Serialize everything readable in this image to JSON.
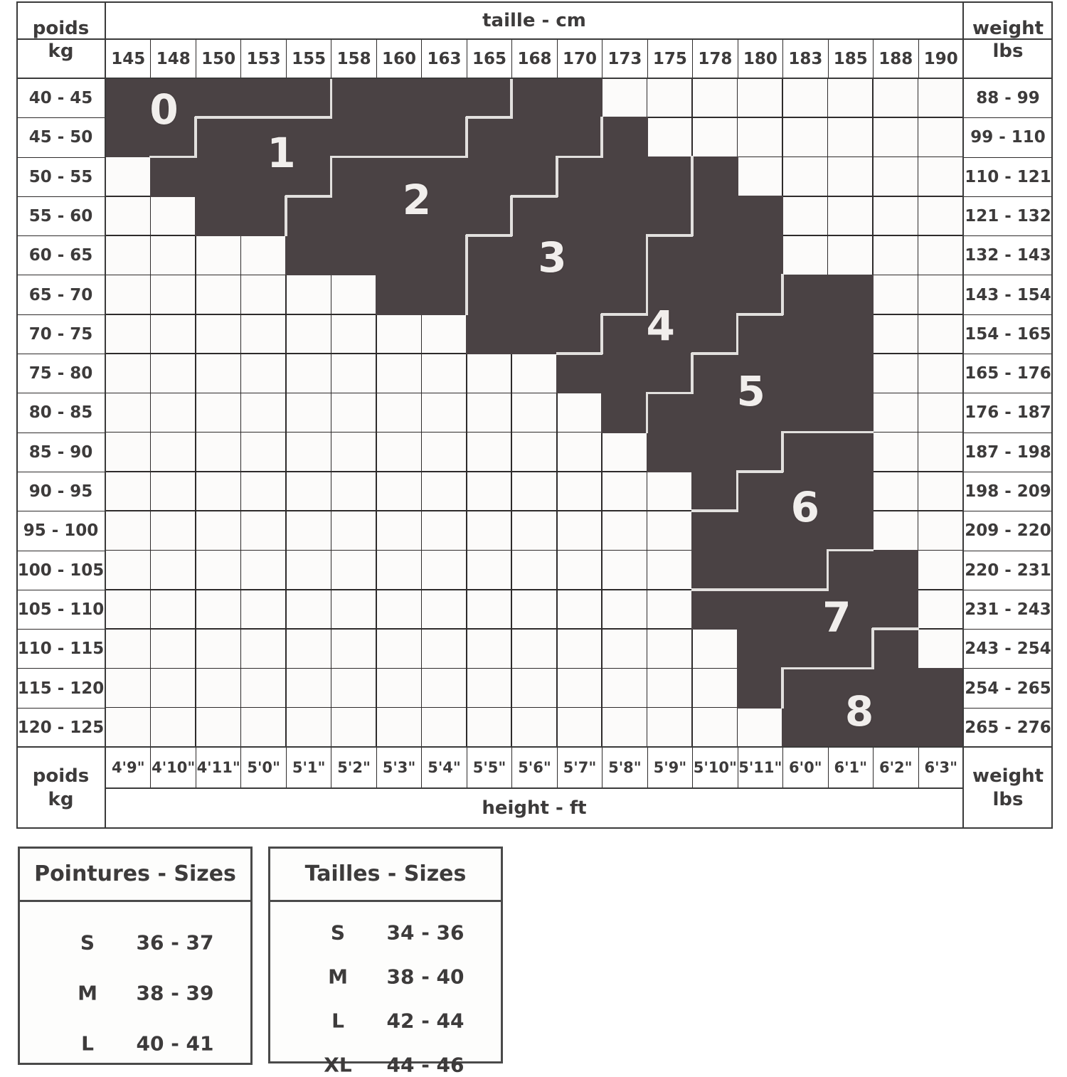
{
  "colors": {
    "dark_region": "#4a4244",
    "cell_bg": "#fcfbfa",
    "grid_line": "#2e2b2b",
    "frame_line": "#3a3a3a",
    "separator": "#e2e0de",
    "size_label_text": "#f1eeec",
    "text": "#3d3b3b"
  },
  "header": {
    "top_axis_label": "taille - cm",
    "bottom_axis_label": "height - ft",
    "top_left_line1": "poids",
    "top_left_line2": "kg",
    "top_right_line1": "weight",
    "top_right_line2": "lbs",
    "bottom_left_line1": "poids",
    "bottom_left_line2": "kg",
    "bottom_right_line1": "weight",
    "bottom_right_line2": "lbs"
  },
  "chart_data": {
    "type": "heatmap",
    "title": "taille - cm / height - ft vs poids kg / weight lbs",
    "x_cm_labels": [
      "145",
      "148",
      "150",
      "153",
      "155",
      "158",
      "160",
      "163",
      "165",
      "168",
      "170",
      "173",
      "175",
      "178",
      "180",
      "183",
      "185",
      "188",
      "190"
    ],
    "x_ft_labels": [
      "4'9\"",
      "4'10\"",
      "4'11\"",
      "5'0\"",
      "5'1\"",
      "5'2\"",
      "5'3\"",
      "5'4\"",
      "5'5\"",
      "5'6\"",
      "5'7\"",
      "5'8\"",
      "5'9\"",
      "5'10\"",
      "5'11\"",
      "6'0\"",
      "6'1\"",
      "6'2\"",
      "6'3\""
    ],
    "y_kg_labels": [
      "40 - 45",
      "45 - 50",
      "50 - 55",
      "55 - 60",
      "60 - 65",
      "65 - 70",
      "70 - 75",
      "75 - 80",
      "80 - 85",
      "85 - 90",
      "90 - 95",
      "95 - 100",
      "100 - 105",
      "105 - 110",
      "110 - 115",
      "115 - 120",
      "120 - 125"
    ],
    "y_lbs_labels": [
      "88 - 99",
      "99 - 110",
      "110 - 121",
      "121 - 132",
      "132 - 143",
      "143 - 154",
      "154 - 165",
      "165 - 176",
      "176 - 187",
      "187 - 198",
      "198 - 209",
      "209 - 220",
      "220 - 231",
      "231 - 243",
      "243 - 254",
      "254 - 265",
      "265 - 276"
    ],
    "size_map": [
      "00000111122........",
      "001111112223.......",
      ".1111222223334.....",
      "..1122222333344....",
      "....22223333444....",
      "......22333344455..",
      "........333444555..",
      "..........4445555..",
      "...........455555..",
      "............55566..",
      ".............5666..",
      ".............6666..",
      ".............66677.",
      ".............77777.",
      "..............7778.",
      "..............78888",
      "...............8888"
    ],
    "size_labels": [
      {
        "text": "0",
        "col": 1.3,
        "row": 0.8
      },
      {
        "text": "1",
        "col": 3.9,
        "row": 1.9
      },
      {
        "text": "2",
        "col": 6.9,
        "row": 3.1
      },
      {
        "text": "3",
        "col": 9.9,
        "row": 4.55
      },
      {
        "text": "4",
        "col": 12.3,
        "row": 6.3
      },
      {
        "text": "5",
        "col": 14.3,
        "row": 7.95
      },
      {
        "text": "6",
        "col": 15.5,
        "row": 10.9
      },
      {
        "text": "7",
        "col": 16.2,
        "row": 13.7
      },
      {
        "text": "8",
        "col": 16.7,
        "row": 16.1
      }
    ]
  },
  "tables": {
    "left": {
      "title": "Pointures - Sizes",
      "rows": [
        {
          "label": "S",
          "value": "36 - 37"
        },
        {
          "label": "M",
          "value": "38 - 39"
        },
        {
          "label": "L",
          "value": "40 - 41"
        }
      ]
    },
    "right": {
      "title": "Tailles - Sizes",
      "rows": [
        {
          "label": "S",
          "value": "34 - 36"
        },
        {
          "label": "M",
          "value": "38 - 40"
        },
        {
          "label": "L",
          "value": "42 - 44"
        },
        {
          "label": "XL",
          "value": "44 - 46"
        }
      ]
    }
  }
}
